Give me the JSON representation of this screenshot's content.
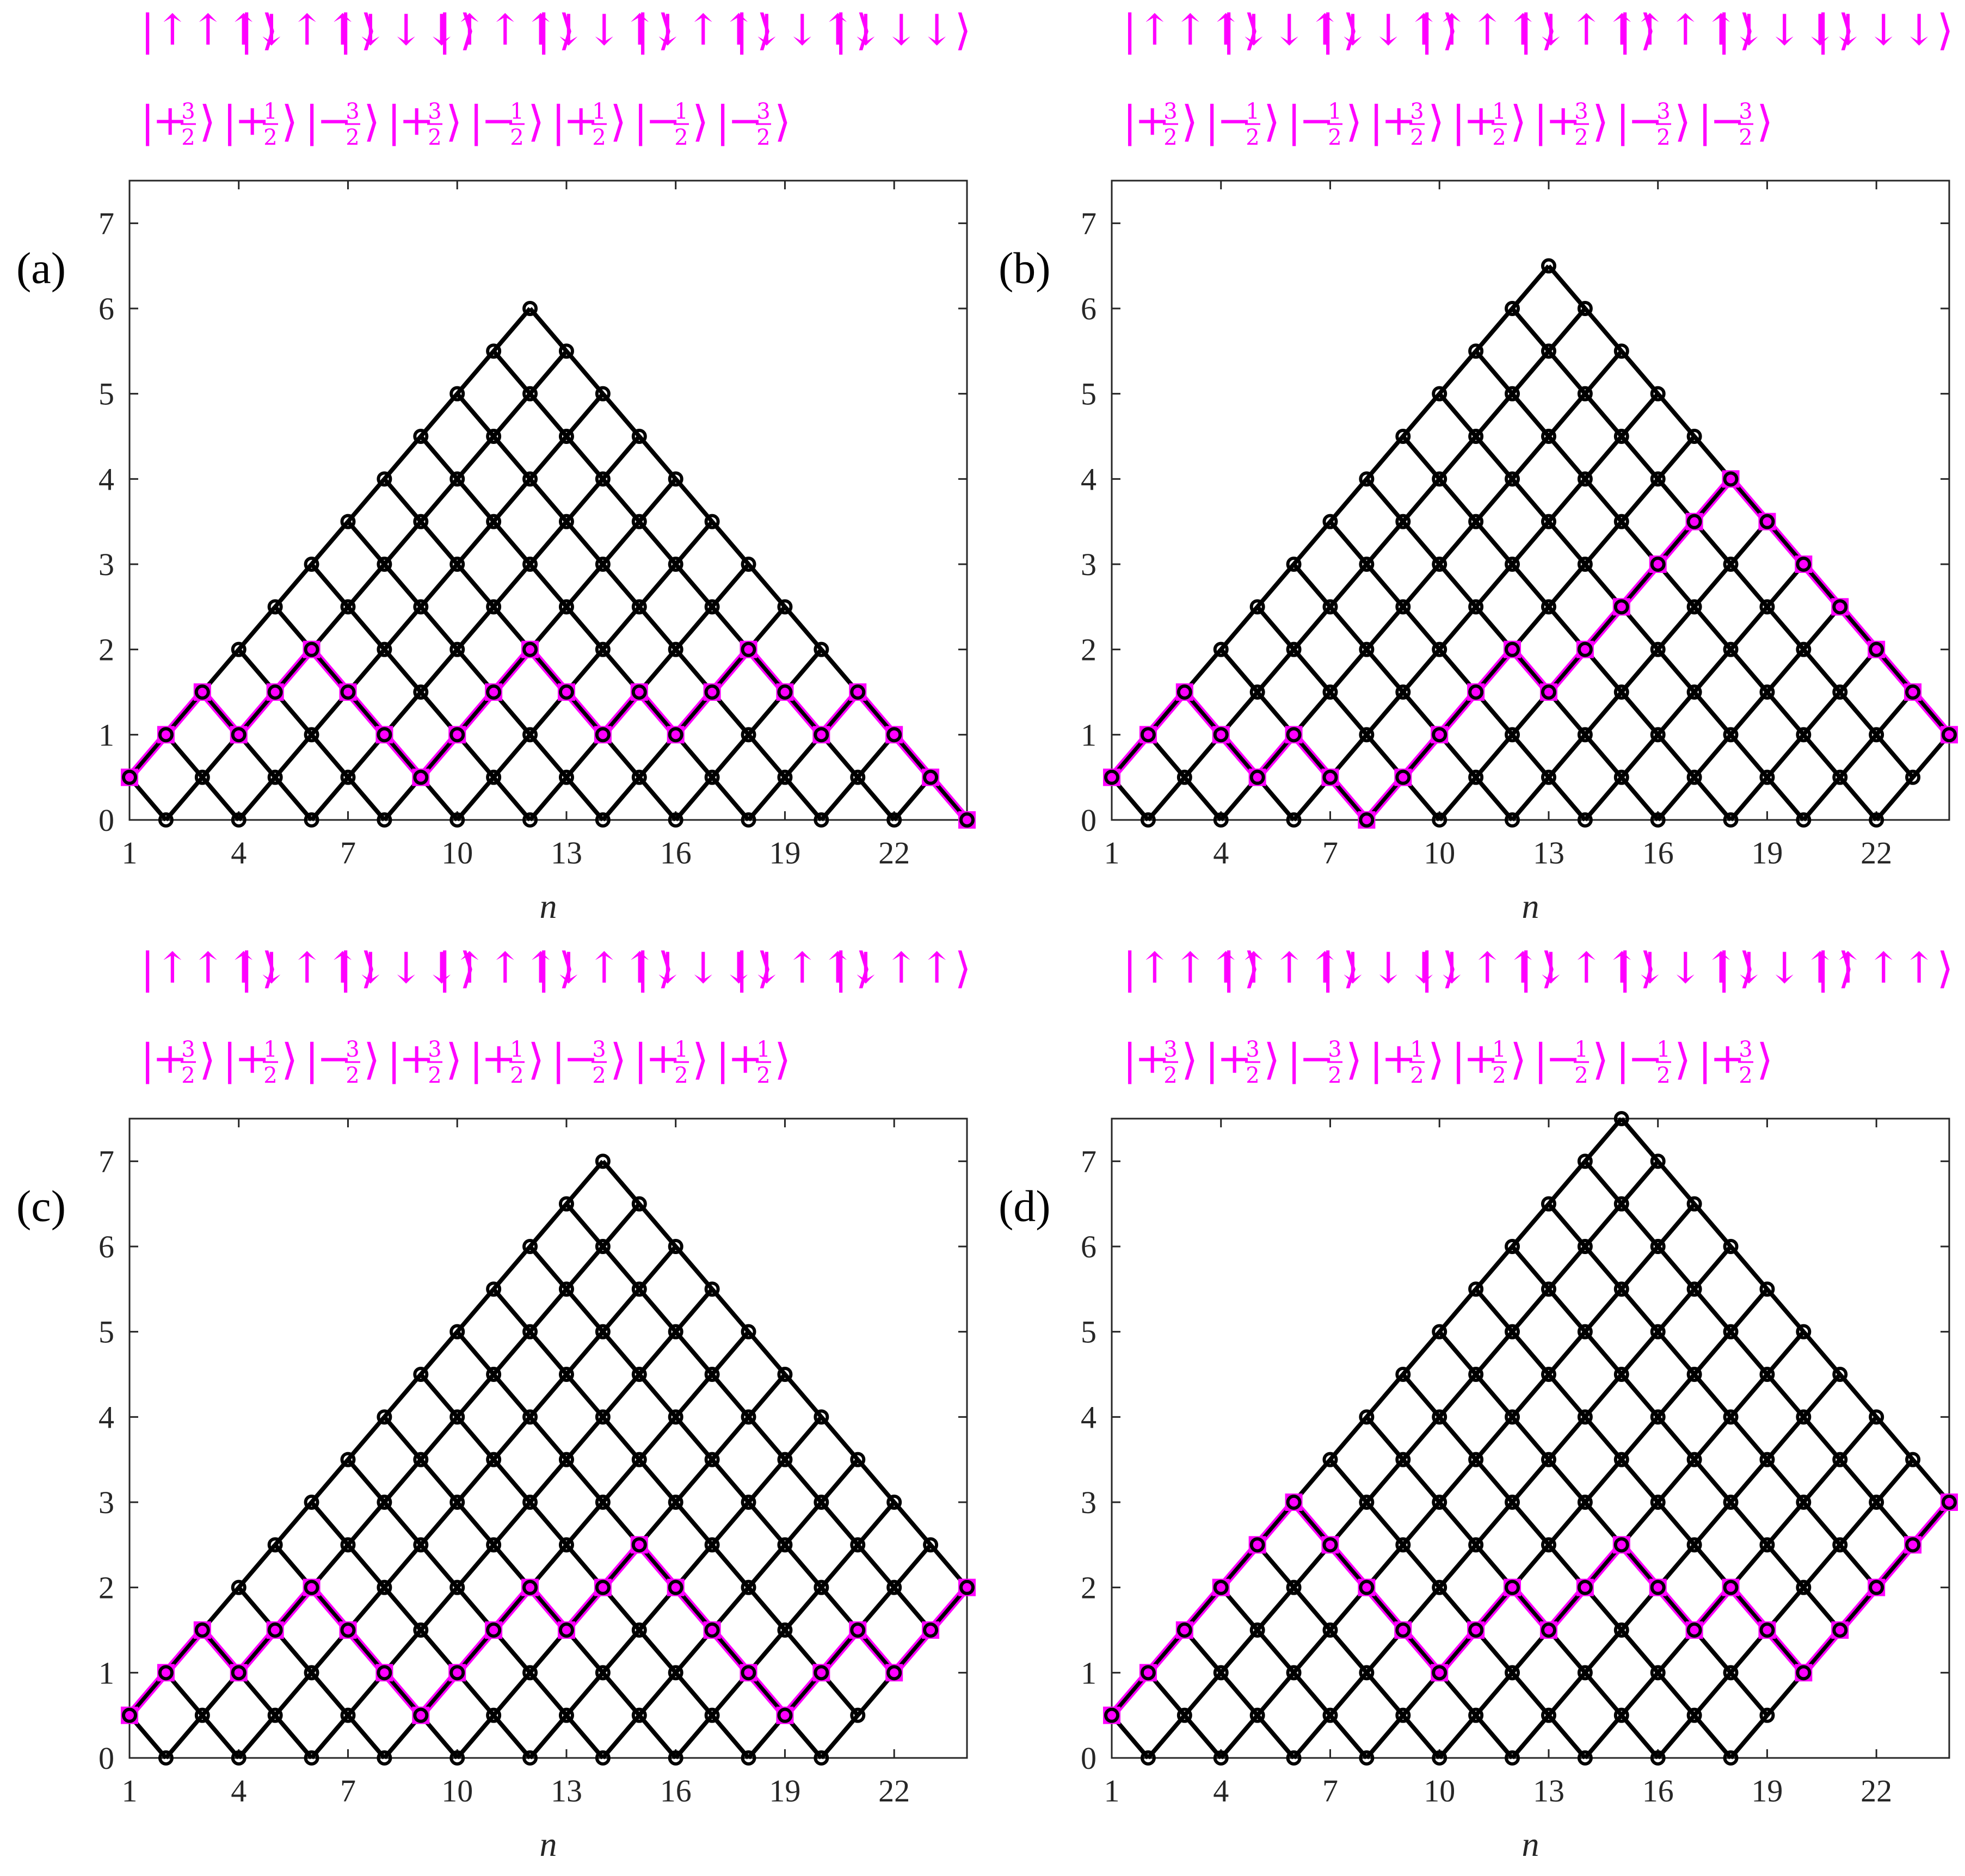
{
  "colors": {
    "accent": "#ff00ff",
    "lattice": "#000000",
    "axis": "#262626"
  },
  "chart_data": [
    {
      "type": "line",
      "panel_label": "(a)",
      "spin_states": [
        "↑↑↑",
        "↓↑↑",
        "↓↓↓",
        "↑↑↑",
        "↓↓↑",
        "↓↑↑",
        "↓↓↑",
        "↓↓↓"
      ],
      "m_values": [
        [
          "+",
          "3",
          "2"
        ],
        [
          "+",
          "1",
          "2"
        ],
        [
          "−",
          "3",
          "2"
        ],
        [
          "+",
          "3",
          "2"
        ],
        [
          "−",
          "1",
          "2"
        ],
        [
          "+",
          "1",
          "2"
        ],
        [
          "−",
          "1",
          "2"
        ],
        [
          "−",
          "3",
          "2"
        ]
      ],
      "xlabel": "n",
      "ylabel": "",
      "xlim": [
        1,
        24
      ],
      "ylim": [
        0,
        7.5
      ],
      "xticks": [
        1,
        4,
        7,
        10,
        13,
        16,
        19,
        22
      ],
      "yticks": [
        0,
        1,
        2,
        3,
        4,
        5,
        6,
        7
      ],
      "grid": false,
      "highlighted_path": [
        0.5,
        1,
        1.5,
        1,
        1.5,
        2,
        1.5,
        1,
        0.5,
        1,
        1.5,
        2,
        1.5,
        1,
        1.5,
        1,
        1.5,
        2,
        1.5,
        1,
        1.5,
        1,
        0.5,
        0
      ]
    },
    {
      "type": "line",
      "panel_label": "(b)",
      "spin_states": [
        "↑↑↑",
        "↓↓↑",
        "↓↓↑",
        "↑↑↑",
        "↓↑↑",
        "↑↑↑",
        "↓↓↓",
        "↓↓↓"
      ],
      "m_values": [
        [
          "+",
          "3",
          "2"
        ],
        [
          "−",
          "1",
          "2"
        ],
        [
          "−",
          "1",
          "2"
        ],
        [
          "+",
          "3",
          "2"
        ],
        [
          "+",
          "1",
          "2"
        ],
        [
          "+",
          "3",
          "2"
        ],
        [
          "−",
          "3",
          "2"
        ],
        [
          "−",
          "3",
          "2"
        ]
      ],
      "xlabel": "n",
      "ylabel": "",
      "xlim": [
        1,
        24
      ],
      "ylim": [
        0,
        7.5
      ],
      "xticks": [
        1,
        4,
        7,
        10,
        13,
        16,
        19,
        22
      ],
      "yticks": [
        0,
        1,
        2,
        3,
        4,
        5,
        6,
        7
      ],
      "grid": false,
      "highlighted_path": [
        0.5,
        1,
        1.5,
        1,
        0.5,
        1,
        0.5,
        0,
        0.5,
        1,
        1.5,
        2,
        1.5,
        2,
        2.5,
        3,
        3.5,
        4,
        3.5,
        3,
        2.5,
        2,
        1.5,
        1
      ]
    },
    {
      "type": "line",
      "panel_label": "(c)",
      "spin_states": [
        "↑↑↑",
        "↓↑↑",
        "↓↓↓",
        "↑↑↑",
        "↓↑↑",
        "↓↓↓",
        "↓↑↑",
        "↓↑↑"
      ],
      "m_values": [
        [
          "+",
          "3",
          "2"
        ],
        [
          "+",
          "1",
          "2"
        ],
        [
          "−",
          "3",
          "2"
        ],
        [
          "+",
          "3",
          "2"
        ],
        [
          "+",
          "1",
          "2"
        ],
        [
          "−",
          "3",
          "2"
        ],
        [
          "+",
          "1",
          "2"
        ],
        [
          "+",
          "1",
          "2"
        ]
      ],
      "xlabel": "n",
      "ylabel": "",
      "xlim": [
        1,
        24
      ],
      "ylim": [
        0,
        7.5
      ],
      "xticks": [
        1,
        4,
        7,
        10,
        13,
        16,
        19,
        22
      ],
      "yticks": [
        0,
        1,
        2,
        3,
        4,
        5,
        6,
        7
      ],
      "grid": false,
      "highlighted_path": [
        0.5,
        1,
        1.5,
        1,
        1.5,
        2,
        1.5,
        1,
        0.5,
        1,
        1.5,
        2,
        1.5,
        2,
        2.5,
        2,
        1.5,
        1,
        0.5,
        1,
        1.5,
        1,
        1.5,
        2
      ]
    },
    {
      "type": "line",
      "panel_label": "(d)",
      "spin_states": [
        "↑↑↑",
        "↑↑↑",
        "↓↓↓",
        "↓↑↑",
        "↓↑↑",
        "↓↓↑",
        "↓↓↑",
        "↑↑↑"
      ],
      "m_values": [
        [
          "+",
          "3",
          "2"
        ],
        [
          "+",
          "3",
          "2"
        ],
        [
          "−",
          "3",
          "2"
        ],
        [
          "+",
          "1",
          "2"
        ],
        [
          "+",
          "1",
          "2"
        ],
        [
          "−",
          "1",
          "2"
        ],
        [
          "−",
          "1",
          "2"
        ],
        [
          "+",
          "3",
          "2"
        ]
      ],
      "xlabel": "n",
      "ylabel": "",
      "xlim": [
        1,
        24
      ],
      "ylim": [
        0,
        7.5
      ],
      "xticks": [
        1,
        4,
        7,
        10,
        13,
        16,
        19,
        22
      ],
      "yticks": [
        0,
        1,
        2,
        3,
        4,
        5,
        6,
        7
      ],
      "grid": false,
      "highlighted_path": [
        0.5,
        1,
        1.5,
        2,
        2.5,
        3,
        2.5,
        2,
        1.5,
        1,
        1.5,
        2,
        1.5,
        2,
        2.5,
        2,
        1.5,
        2,
        1.5,
        1,
        1.5,
        2,
        2.5,
        3
      ]
    }
  ]
}
